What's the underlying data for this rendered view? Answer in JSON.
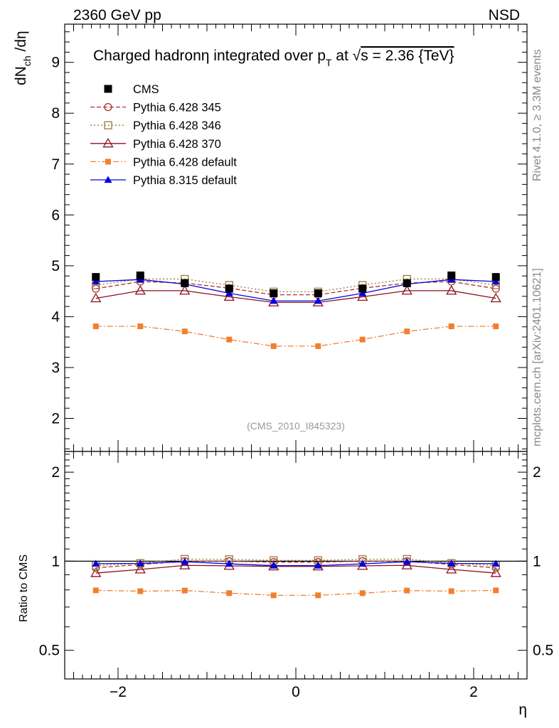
{
  "header": {
    "left_label": "2360 GeV pp",
    "right_label": "NSD"
  },
  "side_labels": {
    "rivet": "Rivet 4.1.0, ≥ 3.3M events",
    "source": "mcplots.cern.ch [arXiv:2401.10621]"
  },
  "chart_data": [
    {
      "type": "line",
      "panel": "main",
      "title": "Charged hadronη integrated over p_T at √s = 2.36 {TeV}",
      "title_parts": {
        "main": "Charged hadronη integrated over p",
        "sub": "T",
        "mid": " at ",
        "sqrt": "√",
        "end": "s = 2.36 {TeV}"
      },
      "xlabel": "η",
      "ylabel": "dN_ch /dη",
      "ylabel_parts": {
        "main": "dN",
        "sub": "ch",
        "end": " /dη"
      },
      "xlim": [
        -2.6,
        2.6
      ],
      "ylim": [
        1.35,
        9.75
      ],
      "x_ticks": [
        -2,
        0,
        2
      ],
      "x_tick_labels": [
        "−2",
        "0",
        "2"
      ],
      "y_ticks": [
        2,
        3,
        4,
        5,
        6,
        7,
        8,
        9
      ],
      "y_tick_labels": [
        "2",
        "3",
        "4",
        "5",
        "6",
        "7",
        "8",
        "9"
      ],
      "analysis_tag": "(CMS_2010_I845323)",
      "x": [
        -2.25,
        -1.75,
        -1.25,
        -0.75,
        -0.25,
        0.25,
        0.75,
        1.25,
        1.75,
        2.25
      ],
      "series": [
        {
          "name": "CMS",
          "color": "#000000",
          "marker": "square-filled",
          "line": "none",
          "values": [
            4.78,
            4.81,
            4.66,
            4.55,
            4.46,
            4.46,
            4.55,
            4.66,
            4.81,
            4.78
          ]
        },
        {
          "name": "Pythia 6.428 345",
          "color": "#b03030",
          "marker": "circle-open",
          "line": "dashed",
          "values": [
            4.55,
            4.69,
            4.66,
            4.56,
            4.43,
            4.43,
            4.56,
            4.66,
            4.69,
            4.55
          ]
        },
        {
          "name": "Pythia 6.428 346",
          "color": "#9a7a3a",
          "marker": "square-open",
          "line": "dotted",
          "values": [
            4.62,
            4.74,
            4.74,
            4.62,
            4.49,
            4.49,
            4.62,
            4.74,
            4.74,
            4.62
          ]
        },
        {
          "name": "Pythia 6.428 370",
          "color": "#8b1020",
          "marker": "triangle-open",
          "line": "solid",
          "values": [
            4.36,
            4.51,
            4.51,
            4.39,
            4.28,
            4.28,
            4.39,
            4.51,
            4.51,
            4.36
          ]
        },
        {
          "name": "Pythia 6.428 default",
          "color": "#f08030",
          "marker": "square-filled-small",
          "line": "dashdot",
          "values": [
            3.81,
            3.81,
            3.71,
            3.55,
            3.42,
            3.42,
            3.55,
            3.71,
            3.81,
            3.81
          ]
        },
        {
          "name": "Pythia 8.315 default",
          "color": "#0000e0",
          "marker": "triangle-filled",
          "line": "solid",
          "values": [
            4.69,
            4.73,
            4.64,
            4.46,
            4.31,
            4.31,
            4.46,
            4.64,
            4.73,
            4.69
          ]
        }
      ]
    },
    {
      "type": "line",
      "panel": "ratio",
      "ylabel": "Ratio to CMS",
      "xlim": [
        -2.6,
        2.6
      ],
      "yscale": "log",
      "ylim": [
        0.4,
        2.35
      ],
      "y_ticks": [
        0.5,
        1,
        2
      ],
      "y_tick_labels": [
        "0.5",
        "1",
        "2"
      ],
      "x_ticks": [
        -2,
        0,
        2
      ],
      "x_tick_labels": [
        "−2",
        "0",
        "2"
      ],
      "x": [
        -2.25,
        -1.75,
        -1.25,
        -0.75,
        -0.25,
        0.25,
        0.75,
        1.25,
        1.75,
        2.25
      ],
      "series": [
        {
          "name": "CMS",
          "color": "#000000",
          "marker": "none",
          "line": "solid",
          "values": [
            1,
            1,
            1,
            1,
            1,
            1,
            1,
            1,
            1,
            1
          ]
        },
        {
          "name": "Pythia 6.428 345",
          "color": "#b03030",
          "marker": "circle-open",
          "line": "dashed",
          "values": [
            0.95,
            0.975,
            1.0,
            1.0,
            0.993,
            0.993,
            1.0,
            1.0,
            0.975,
            0.95
          ]
        },
        {
          "name": "Pythia 6.428 346",
          "color": "#9a7a3a",
          "marker": "square-open",
          "line": "dotted",
          "values": [
            0.967,
            0.985,
            1.017,
            1.015,
            1.007,
            1.007,
            1.015,
            1.017,
            0.985,
            0.967
          ]
        },
        {
          "name": "Pythia 6.428 370",
          "color": "#8b1020",
          "marker": "triangle-open",
          "line": "solid",
          "values": [
            0.912,
            0.938,
            0.968,
            0.965,
            0.96,
            0.96,
            0.965,
            0.968,
            0.938,
            0.912
          ]
        },
        {
          "name": "Pythia 6.428 default",
          "color": "#f08030",
          "marker": "square-filled-small",
          "line": "dashdot",
          "values": [
            0.797,
            0.792,
            0.796,
            0.78,
            0.767,
            0.767,
            0.78,
            0.796,
            0.792,
            0.797
          ]
        },
        {
          "name": "Pythia 8.315 default",
          "color": "#0000e0",
          "marker": "triangle-filled",
          "line": "solid",
          "values": [
            0.981,
            0.983,
            0.996,
            0.98,
            0.966,
            0.966,
            0.98,
            0.996,
            0.983,
            0.981
          ]
        }
      ]
    }
  ]
}
